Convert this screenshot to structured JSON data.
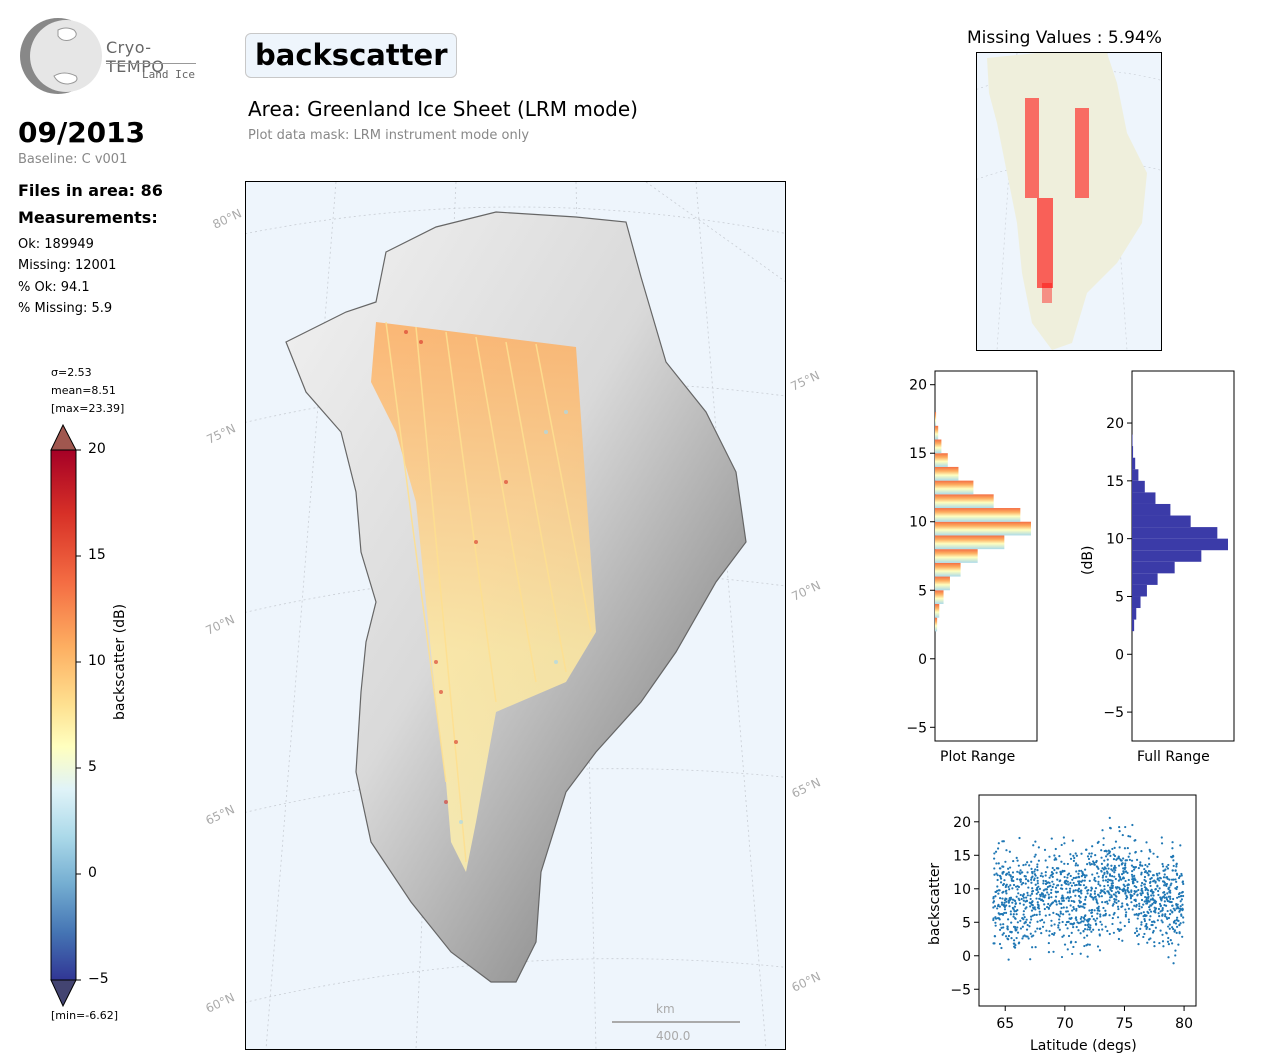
{
  "logo": {
    "name": "Cryo-TEMPO",
    "subtitle": "Land Ice"
  },
  "header": {
    "month": "09/2013",
    "baseline": "Baseline: C v001",
    "files_in_area": "Files in area: 86",
    "measurements_heading": "Measurements:",
    "ok": "Ok: 189949",
    "missing": "Missing: 12001",
    "pct_ok": "% Ok: 94.1",
    "pct_missing": "% Missing: 5.9"
  },
  "main": {
    "parameter": "backscatter",
    "area": "Area: Greenland Ice Sheet (LRM mode)",
    "mask": "Plot data mask: LRM instrument mode only"
  },
  "colorbar": {
    "sigma": "σ=2.53",
    "mean": "mean=8.51",
    "max": "[max=23.39]",
    "min": "[min=-6.62]",
    "label": "backscatter (dB)",
    "ticks": [
      "20",
      "15",
      "10",
      "5",
      "0",
      "−5"
    ]
  },
  "map": {
    "lat_labels": [
      "80°N",
      "75°N",
      "70°N",
      "65°N",
      "60°N",
      "75°N",
      "70°N",
      "65°N",
      "60°N"
    ],
    "scale_unit": "km",
    "scale_value": "400.0"
  },
  "missing_panel": {
    "title": "Missing Values : 5.94%"
  },
  "colors": {
    "map_bg": "#eef5fc",
    "land": "#efefdc",
    "missing_points": "#ff0000",
    "full_hist": "#3b3ba8",
    "scatter": "#1f77b4"
  },
  "chart_data": [
    {
      "type": "bar",
      "orientation": "horizontal",
      "name": "plot-range-histogram",
      "xlabel": "Plot Range",
      "ylabel": "",
      "ylim": [
        -6,
        21
      ],
      "yticks": [
        "20",
        "15",
        "10",
        "5",
        "0",
        "−5"
      ],
      "bins": [
        2,
        3,
        4,
        5,
        6,
        7,
        8,
        9,
        10,
        11,
        12,
        13,
        14,
        15,
        16,
        17
      ],
      "counts": [
        2,
        4,
        8,
        14,
        24,
        40,
        65,
        90,
        80,
        55,
        36,
        22,
        12,
        6,
        3,
        1
      ]
    },
    {
      "type": "bar",
      "orientation": "horizontal",
      "name": "full-range-histogram",
      "xlabel": "Full Range",
      "ylabel": "(dB)",
      "ylim": [
        -7.5,
        24.5
      ],
      "yticks": [
        "20",
        "15",
        "10",
        "5",
        "0",
        "−5"
      ],
      "bins": [
        2,
        3,
        4,
        5,
        6,
        7,
        8,
        9,
        10,
        11,
        12,
        13,
        14,
        15,
        16,
        17,
        18
      ],
      "counts": [
        2,
        4,
        8,
        14,
        24,
        40,
        65,
        90,
        80,
        55,
        36,
        22,
        12,
        6,
        3,
        1,
        0.5
      ]
    },
    {
      "type": "scatter",
      "name": "latitude-scatter",
      "xlabel": "Latitude (degs)",
      "ylabel": "backscatter",
      "xlim": [
        62.8,
        81
      ],
      "ylim": [
        -7.5,
        24
      ],
      "xticks": [
        "65",
        "70",
        "75",
        "80"
      ],
      "yticks": [
        "20",
        "15",
        "10",
        "5",
        "0",
        "−5"
      ]
    }
  ]
}
